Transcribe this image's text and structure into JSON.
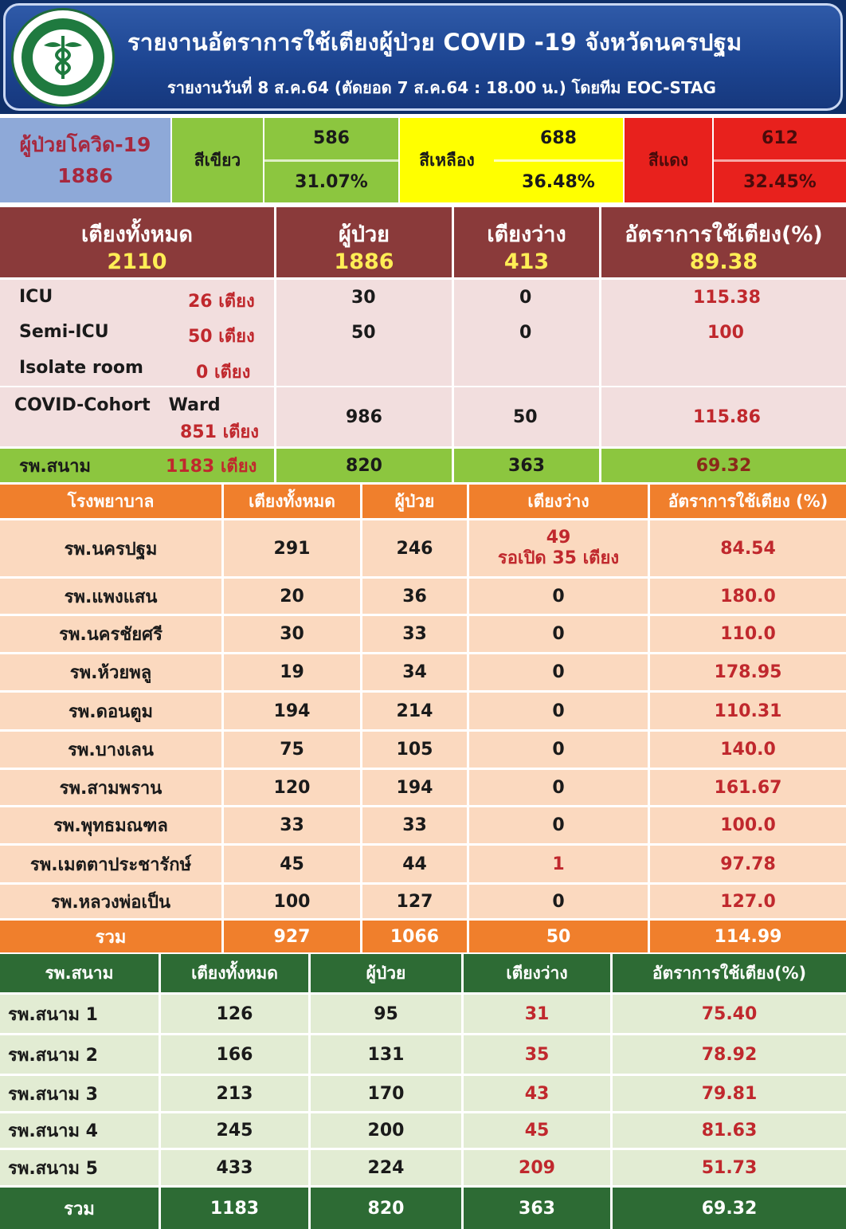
{
  "header": {
    "title": "รายงานอัตราการใช้เตียงผู้ป่วย COVID -19  จังหวัดนครปฐม",
    "subtitle": "รายงานวันที่ 8 ส.ค.64 (ตัดยอด 7 ส.ค.64 : 18.00 น.) โดยทีม EOC-STAG",
    "logo_name": "ministry-of-public-health-seal"
  },
  "severity": {
    "total_label": "ผู้ป่วยโควิด-19",
    "total_value": "1886",
    "green": {
      "label": "สีเขียว",
      "count": "586",
      "percent": "31.07%"
    },
    "yellow": {
      "label": "สีเหลือง",
      "count": "688",
      "percent": "36.48%"
    },
    "red": {
      "label": "สีแดง",
      "count": "612",
      "percent": "32.45%"
    },
    "colors": {
      "green": "#8cc63f",
      "yellow": "#ffff00",
      "red": "#e8211d",
      "total_bg": "#8ea9d8"
    }
  },
  "summary": {
    "headers": [
      {
        "label": "เตียงทั้งหมด",
        "value": "2110"
      },
      {
        "label": "ผู้ป่วย",
        "value": "1886"
      },
      {
        "label": "เตียงว่าง",
        "value": "413"
      },
      {
        "label": "อัตราการใช้เตียง(%)",
        "value": "89.38"
      }
    ],
    "rows": [
      {
        "name": "ICU",
        "beds": "26 เตียง",
        "patients": "30",
        "vacant": "0",
        "rate": "115.38"
      },
      {
        "name": "Semi-ICU",
        "beds": "50 เตียง",
        "patients": "50",
        "vacant": "0",
        "rate": "100"
      },
      {
        "name": "Isolate room",
        "beds": "0 เตียง",
        "patients": "",
        "vacant": "",
        "rate": ""
      },
      {
        "name": "COVID-Cohort   Ward",
        "beds": "851 เตียง",
        "patients": "986",
        "vacant": "50",
        "rate": "115.86"
      }
    ],
    "field": {
      "name": "รพ.สนาม",
      "beds": "1183 เตียง",
      "patients": "820",
      "vacant": "363",
      "rate": "69.32"
    }
  },
  "hospitals": {
    "headers": [
      "โรงพยาบาล",
      "เตียงทั้งหมด",
      "ผู้ป่วย",
      "เตียงว่าง",
      "อัตราการใช้เตียง (%)"
    ],
    "rows": [
      {
        "name": "รพ.นครปฐม",
        "beds": "291",
        "patients": "246",
        "vacant": "49",
        "vacant_note": "รอเปิด 35 เตียง",
        "rate": "84.54"
      },
      {
        "name": "รพ.แพงแสน",
        "beds": "20",
        "patients": "36",
        "vacant": "0",
        "rate": "180.0"
      },
      {
        "name": "รพ.นครชัยศรี",
        "beds": "30",
        "patients": "33",
        "vacant": "0",
        "rate": "110.0"
      },
      {
        "name": "รพ.ห้วยพลู",
        "beds": "19",
        "patients": "34",
        "vacant": "0",
        "rate": "178.95"
      },
      {
        "name": "รพ.ดอนตูม",
        "beds": "194",
        "patients": "214",
        "vacant": "0",
        "rate": "110.31"
      },
      {
        "name": "รพ.บางเลน",
        "beds": "75",
        "patients": "105",
        "vacant": "0",
        "rate": "140.0"
      },
      {
        "name": "รพ.สามพราน",
        "beds": "120",
        "patients": "194",
        "vacant": "0",
        "rate": "161.67"
      },
      {
        "name": "รพ.พุทธมณฑล",
        "beds": "33",
        "patients": "33",
        "vacant": "0",
        "rate": "100.0"
      },
      {
        "name": "รพ.เมตตาประชารักษ์",
        "beds": "45",
        "patients": "44",
        "vacant": "1",
        "rate": "97.78"
      },
      {
        "name": "รพ.หลวงพ่อเป็น",
        "beds": "100",
        "patients": "127",
        "vacant": "0",
        "rate": "127.0"
      }
    ],
    "total": {
      "name": "รวม",
      "beds": "927",
      "patients": "1066",
      "vacant": "50",
      "rate": "114.99"
    }
  },
  "field_hospitals": {
    "headers": [
      "รพ.สนาม",
      "เตียงทั้งหมด",
      "ผู้ป่วย",
      "เตียงว่าง",
      "อัตราการใช้เตียง(%)"
    ],
    "rows": [
      {
        "name": "รพ.สนาม 1",
        "beds": "126",
        "patients": "95",
        "vacant": "31",
        "rate": "75.40"
      },
      {
        "name": "รพ.สนาม 2",
        "beds": "166",
        "patients": "131",
        "vacant": "35",
        "rate": "78.92"
      },
      {
        "name": "รพ.สนาม 3",
        "beds": "213",
        "patients": "170",
        "vacant": "43",
        "rate": "79.81"
      },
      {
        "name": "รพ.สนาม 4",
        "beds": "245",
        "patients": "200",
        "vacant": "45",
        "rate": "81.63"
      },
      {
        "name": "รพ.สนาม 5",
        "beds": "433",
        "patients": "224",
        "vacant": "209",
        "rate": "51.73"
      }
    ],
    "total": {
      "name": "รวม",
      "beds": "1183",
      "patients": "820",
      "vacant": "363",
      "rate": "69.32"
    }
  }
}
